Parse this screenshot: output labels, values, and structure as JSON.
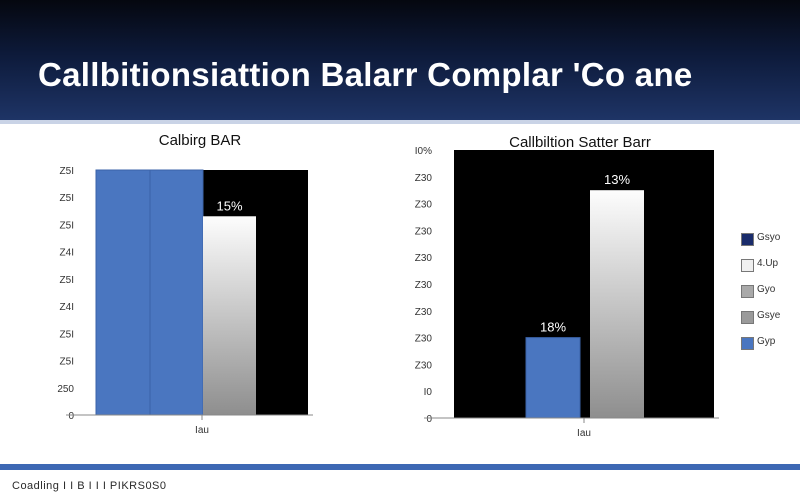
{
  "page": {
    "title": "Callbitionsiattion Balarr Complar 'Co ane",
    "footer": "Coadling I I B I I I PIKRS0S0"
  },
  "legend": {
    "items": [
      {
        "label": "Gsyo",
        "color": "#1a2c6b"
      },
      {
        "label": "4.Up",
        "color": "#f0f0f0"
      },
      {
        "label": "Gyo",
        "color": "#a9a9a9"
      },
      {
        "label": "Gsye",
        "color": "#9a9a9a"
      },
      {
        "label": "Gyp",
        "color": "#4a76c0"
      }
    ]
  },
  "chart_data": [
    {
      "type": "bar",
      "title": "Calbirg BAR",
      "xlabel": "",
      "ylabel": "",
      "categories": [
        "Iau"
      ],
      "yticks": [
        "0",
        "250",
        "Z5I",
        "Z5I",
        "Z4I",
        "Z5I",
        "Z4I",
        "Z5I",
        "Z5I",
        "Z5I"
      ],
      "ylim": [
        0,
        9
      ],
      "background": "#000000",
      "bars": [
        {
          "value": 9.0,
          "color": "#4a76c0",
          "label": ""
        },
        {
          "value": 9.0,
          "color": "#4a76c0",
          "label": ""
        },
        {
          "value": 7.3,
          "color": "gradient-gray",
          "label": "15%"
        }
      ]
    },
    {
      "type": "bar",
      "title": "Callbiltion Satter Barr",
      "xlabel": "",
      "ylabel": "",
      "categories": [
        "Iau"
      ],
      "yticks": [
        "0",
        "I0",
        "Z30",
        "Z30",
        "Z30",
        "Z30",
        "Z30",
        "Z30",
        "Z30",
        "Z30",
        "I0%"
      ],
      "ylim": [
        0,
        10
      ],
      "background": "#000000",
      "bars": [
        {
          "value": 3.0,
          "color": "#4a76c0",
          "label": "18%"
        },
        {
          "value": 8.5,
          "color": "gradient-gray",
          "label": "13%"
        }
      ]
    }
  ]
}
